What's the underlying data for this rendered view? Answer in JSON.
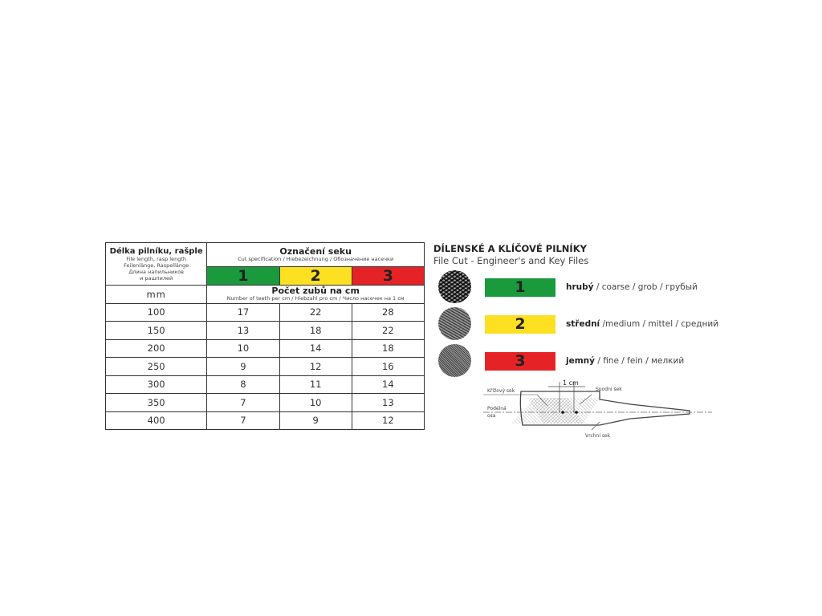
{
  "table": {
    "col0_title": "Délka pilníku, rašple",
    "col0_sub": [
      "File length, rasp length",
      "Feilenlänge, Raspellänge",
      "Длина напильников",
      "и рашпилей"
    ],
    "cut_title": "Označení seku",
    "cut_sub": "Cut specification / Hiebezeichnung / Обозначение насечки",
    "cuts": [
      {
        "label": "1",
        "color": "#1a9a3c"
      },
      {
        "label": "2",
        "color": "#fde021"
      },
      {
        "label": "3",
        "color": "#e52326"
      }
    ],
    "unit": "mm",
    "teeth_title": "Počet zubů na cm",
    "teeth_sub": "Number of teeth per cm / Hiebzahl pro cm / Число насечек на 1 см",
    "rows": [
      [
        "100",
        "17",
        "22",
        "28"
      ],
      [
        "150",
        "13",
        "18",
        "22"
      ],
      [
        "200",
        "10",
        "14",
        "18"
      ],
      [
        "250",
        "9",
        "12",
        "16"
      ],
      [
        "300",
        "8",
        "11",
        "14"
      ],
      [
        "350",
        "7",
        "10",
        "13"
      ],
      [
        "400",
        "7",
        "9",
        "12"
      ]
    ]
  },
  "right": {
    "title": "DÍLENSKÉ A KLÍČOVÉ PILNÍKY",
    "subtitle": "File Cut - Engineer's and Key Files",
    "grades": [
      {
        "num": "1",
        "color": "#1a9a3c",
        "bold": "hrubý",
        "rest": " / coarse / grob / грубый",
        "icon": "coarse-file-texture-icon"
      },
      {
        "num": "2",
        "color": "#fde021",
        "bold": "střední",
        "rest": " /medium / mittel / средний",
        "icon": "medium-file-texture-icon"
      },
      {
        "num": "3",
        "color": "#e52326",
        "bold": "jemný",
        "rest": " / fine / fein / мелкий",
        "icon": "fine-file-texture-icon"
      }
    ],
    "diagram": {
      "cross_cut": "Křížový sek",
      "distance": "1 cm",
      "lower_cut": "Spodní sek",
      "axis_1": "Podélná",
      "axis_2": "osa",
      "upper_cut": "Vrchní sek"
    }
  }
}
